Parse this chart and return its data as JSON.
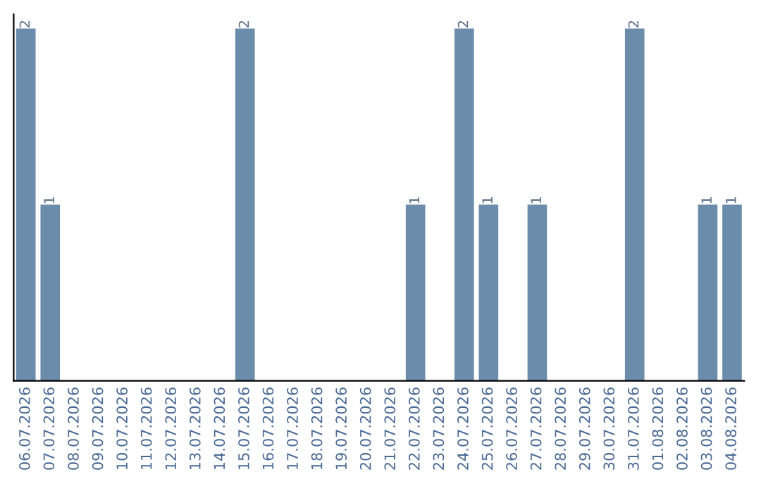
{
  "chart_data": {
    "type": "bar",
    "categories": [
      "06.07.2026",
      "07.07.2026",
      "08.07.2026",
      "09.07.2026",
      "10.07.2026",
      "11.07.2026",
      "12.07.2026",
      "13.07.2026",
      "14.07.2026",
      "15.07.2026",
      "16.07.2026",
      "17.07.2026",
      "18.07.2026",
      "19.07.2026",
      "20.07.2026",
      "21.07.2026",
      "22.07.2026",
      "23.07.2026",
      "24.07.2026",
      "25.07.2026",
      "26.07.2026",
      "27.07.2026",
      "28.07.2026",
      "29.07.2026",
      "30.07.2026",
      "31.07.2026",
      "01.08.2026",
      "02.08.2026",
      "03.08.2026",
      "04.08.2026"
    ],
    "values": [
      2,
      1,
      0,
      0,
      0,
      0,
      0,
      0,
      0,
      2,
      0,
      0,
      0,
      0,
      0,
      0,
      1,
      0,
      2,
      1,
      0,
      1,
      0,
      0,
      0,
      2,
      0,
      0,
      1,
      1
    ],
    "value_labels": [
      "2",
      "1",
      null,
      null,
      null,
      null,
      null,
      null,
      null,
      "2",
      null,
      null,
      null,
      null,
      null,
      null,
      "1",
      null,
      "2",
      "1",
      null,
      "1",
      null,
      null,
      null,
      "2",
      null,
      null,
      "1",
      "1"
    ],
    "color": "#6b8cab",
    "tick_labels": "x",
    "grid": false,
    "legend": false
  }
}
